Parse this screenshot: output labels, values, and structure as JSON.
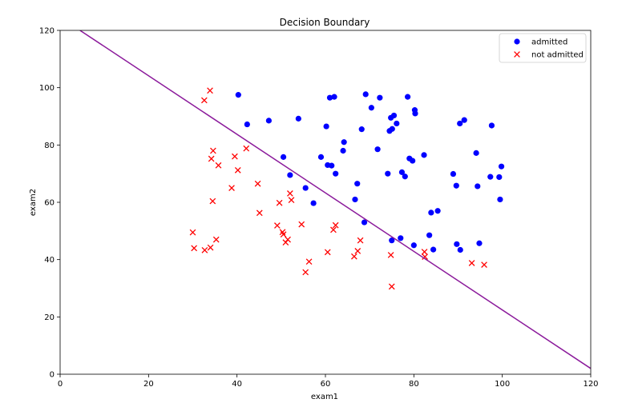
{
  "chart_data": {
    "type": "scatter",
    "title": "Decision Boundary",
    "xlabel": "exam1",
    "ylabel": "exam2",
    "xlim": [
      0,
      120
    ],
    "ylim": [
      0,
      120
    ],
    "xticks": [
      0,
      20,
      40,
      60,
      80,
      100,
      120
    ],
    "yticks": [
      0,
      20,
      40,
      60,
      80,
      100,
      120
    ],
    "grid": false,
    "legend_placement": "top-right",
    "series": [
      {
        "name": "admitted",
        "marker": "circle",
        "color": "#0000ff",
        "points": [
          [
            40.3,
            97.5
          ],
          [
            42.3,
            87.2
          ],
          [
            47.2,
            88.5
          ],
          [
            50.5,
            75.8
          ],
          [
            52.0,
            69.5
          ],
          [
            53.9,
            89.2
          ],
          [
            55.5,
            65.0
          ],
          [
            57.3,
            59.7
          ],
          [
            59.0,
            75.8
          ],
          [
            60.2,
            86.5
          ],
          [
            60.5,
            73.0
          ],
          [
            61.0,
            96.5
          ],
          [
            61.4,
            72.8
          ],
          [
            62.0,
            96.8
          ],
          [
            62.3,
            70.0
          ],
          [
            64.0,
            78.0
          ],
          [
            64.2,
            81.0
          ],
          [
            66.7,
            61.0
          ],
          [
            67.2,
            66.5
          ],
          [
            68.2,
            85.5
          ],
          [
            68.8,
            53.0
          ],
          [
            69.1,
            97.7
          ],
          [
            70.4,
            93.0
          ],
          [
            71.8,
            78.5
          ],
          [
            72.3,
            96.5
          ],
          [
            74.1,
            70.0
          ],
          [
            74.5,
            84.9
          ],
          [
            74.8,
            89.5
          ],
          [
            75.0,
            46.7
          ],
          [
            75.1,
            85.6
          ],
          [
            75.5,
            90.3
          ],
          [
            76.1,
            87.5
          ],
          [
            77.0,
            47.5
          ],
          [
            77.3,
            70.5
          ],
          [
            78.0,
            69.0
          ],
          [
            78.6,
            96.8
          ],
          [
            79.0,
            75.3
          ],
          [
            79.7,
            74.5
          ],
          [
            80.0,
            45.0
          ],
          [
            80.2,
            92.2
          ],
          [
            80.3,
            91.0
          ],
          [
            82.3,
            76.5
          ],
          [
            83.5,
            48.5
          ],
          [
            83.9,
            56.4
          ],
          [
            84.4,
            43.5
          ],
          [
            85.4,
            57.0
          ],
          [
            88.9,
            69.9
          ],
          [
            89.6,
            65.8
          ],
          [
            89.7,
            45.4
          ],
          [
            90.4,
            87.5
          ],
          [
            90.5,
            43.4
          ],
          [
            91.4,
            88.7
          ],
          [
            94.1,
            77.2
          ],
          [
            94.4,
            65.6
          ],
          [
            94.8,
            45.7
          ],
          [
            97.3,
            68.9
          ],
          [
            97.6,
            86.8
          ],
          [
            99.3,
            68.8
          ],
          [
            99.5,
            61.0
          ],
          [
            99.8,
            72.5
          ]
        ]
      },
      {
        "name": "not admitted",
        "marker": "x",
        "color": "#ff0000",
        "points": [
          [
            30.0,
            49.5
          ],
          [
            30.3,
            44.0
          ],
          [
            32.6,
            95.6
          ],
          [
            32.7,
            43.3
          ],
          [
            33.9,
            99.0
          ],
          [
            34.0,
            44.2
          ],
          [
            34.2,
            75.2
          ],
          [
            34.5,
            60.4
          ],
          [
            34.6,
            78.0
          ],
          [
            35.3,
            47.0
          ],
          [
            35.8,
            72.9
          ],
          [
            38.8,
            65.0
          ],
          [
            39.5,
            76.0
          ],
          [
            40.2,
            71.2
          ],
          [
            42.1,
            78.8
          ],
          [
            44.7,
            66.5
          ],
          [
            45.1,
            56.3
          ],
          [
            49.1,
            51.9
          ],
          [
            49.6,
            59.8
          ],
          [
            50.3,
            49.6
          ],
          [
            50.5,
            48.8
          ],
          [
            51.0,
            46.0
          ],
          [
            51.5,
            47.0
          ],
          [
            52.0,
            63.1
          ],
          [
            52.3,
            60.8
          ],
          [
            54.6,
            52.3
          ],
          [
            55.5,
            35.6
          ],
          [
            56.3,
            39.3
          ],
          [
            60.5,
            42.6
          ],
          [
            61.8,
            50.4
          ],
          [
            62.3,
            52.0
          ],
          [
            66.5,
            41.1
          ],
          [
            67.3,
            43.0
          ],
          [
            67.9,
            46.7
          ],
          [
            74.8,
            41.6
          ],
          [
            75.0,
            30.6
          ],
          [
            82.4,
            42.7
          ],
          [
            82.5,
            41.0
          ],
          [
            93.1,
            38.8
          ],
          [
            95.9,
            38.2
          ]
        ]
      }
    ],
    "boundary_line": {
      "name": "",
      "color": "#8b1a9b",
      "points": [
        [
          4.5,
          120.0
        ],
        [
          120.0,
          2.0
        ]
      ]
    }
  }
}
